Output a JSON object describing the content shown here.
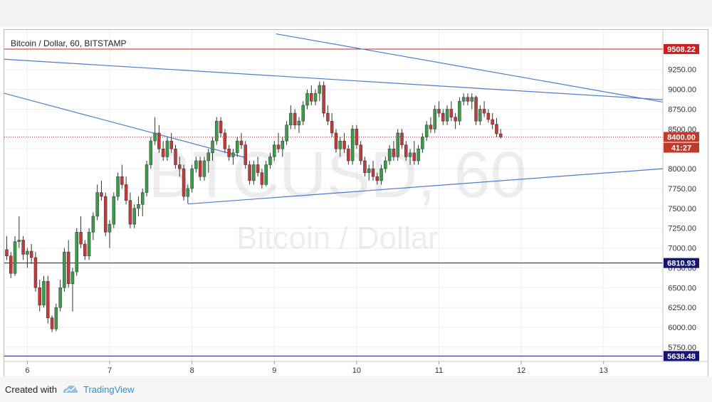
{
  "chart_data": {
    "type": "candlestick",
    "title": "Bitcoin / Dollar, 60, BITSTAMP",
    "watermark_symbol": "BTCUSD, 60",
    "watermark_name": "Bitcoin / Dollar",
    "x_tick_labels": [
      "6",
      "7",
      "8",
      "9",
      "10",
      "11",
      "12",
      "13"
    ],
    "y_tick_labels": [
      "9250.00",
      "9000.00",
      "8750.00",
      "8500.00",
      "8250.00",
      "8000.00",
      "7750.00",
      "7500.00",
      "7250.00",
      "7000.00",
      "6750.00",
      "6500.00",
      "6250.00",
      "6000.00",
      "5750.00"
    ],
    "ylim": [
      5570,
      9750
    ],
    "xlim": [
      5.72,
      13.72
    ],
    "horizontal_levels": [
      {
        "value": 9508.22,
        "label": "9508.22",
        "color": "#cc1f1f"
      },
      {
        "value": 6810.93,
        "label": "6810.93",
        "color": "#141477"
      },
      {
        "value": 5638.48,
        "label": "5638.48",
        "color": "#141477"
      }
    ],
    "last_price": {
      "value": 8400.0,
      "label": "8400.00",
      "countdown": "41:27",
      "color": "#c0392b"
    },
    "trend_lines": [
      {
        "from": [
          9.02,
          9700
        ],
        "to": [
          13.72,
          8840
        ]
      },
      {
        "from": [
          5.72,
          9380
        ],
        "to": [
          13.72,
          8870
        ]
      },
      {
        "from": [
          5.72,
          8950
        ],
        "to": [
          8.65,
          8140
        ]
      },
      {
        "from": [
          7.95,
          7555
        ],
        "to": [
          13.72,
          8000
        ]
      }
    ],
    "candles": [
      [
        5.75,
        6980,
        7150,
        6850,
        6900
      ],
      [
        5.8,
        6900,
        6950,
        6620,
        6680
      ],
      [
        5.85,
        6680,
        7150,
        6650,
        7080
      ],
      [
        5.9,
        7080,
        7400,
        7000,
        7100
      ],
      [
        5.95,
        7100,
        7150,
        6850,
        6920
      ],
      [
        6.0,
        6920,
        7000,
        6750,
        6960
      ],
      [
        6.05,
        6960,
        7050,
        6800,
        6880
      ],
      [
        6.1,
        6880,
        6950,
        6450,
        6500
      ],
      [
        6.15,
        6500,
        6600,
        6200,
        6280
      ],
      [
        6.2,
        6280,
        6650,
        6250,
        6580
      ],
      [
        6.25,
        6580,
        6650,
        6050,
        6120
      ],
      [
        6.3,
        6120,
        6150,
        5940,
        5980
      ],
      [
        6.35,
        5980,
        6300,
        5950,
        6250
      ],
      [
        6.4,
        6250,
        6600,
        6200,
        6500
      ],
      [
        6.45,
        6500,
        7000,
        6450,
        6950
      ],
      [
        6.5,
        6950,
        7100,
        6500,
        6550
      ],
      [
        6.55,
        6550,
        6750,
        6200,
        6700
      ],
      [
        6.6,
        6700,
        7250,
        6650,
        7200
      ],
      [
        6.65,
        7200,
        7400,
        7000,
        7050
      ],
      [
        6.7,
        7050,
        7100,
        6850,
        6900
      ],
      [
        6.75,
        6900,
        7250,
        6850,
        7200
      ],
      [
        6.8,
        7200,
        7450,
        7100,
        7400
      ],
      [
        6.85,
        7400,
        7800,
        7350,
        7700
      ],
      [
        6.9,
        7700,
        7850,
        7600,
        7650
      ],
      [
        6.95,
        7650,
        7700,
        7150,
        7200
      ],
      [
        7.0,
        7200,
        7350,
        7000,
        7300
      ],
      [
        7.05,
        7300,
        7700,
        7250,
        7650
      ],
      [
        7.1,
        7650,
        7950,
        7600,
        7900
      ],
      [
        7.15,
        7900,
        8050,
        7750,
        7800
      ],
      [
        7.2,
        7800,
        7900,
        7550,
        7600
      ],
      [
        7.25,
        7600,
        7700,
        7250,
        7300
      ],
      [
        7.3,
        7300,
        7550,
        7250,
        7500
      ],
      [
        7.35,
        7500,
        7650,
        7400,
        7550
      ],
      [
        7.4,
        7550,
        7750,
        7400,
        7700
      ],
      [
        7.45,
        7700,
        8100,
        7650,
        8050
      ],
      [
        7.5,
        8050,
        8400,
        8000,
        8350
      ],
      [
        7.55,
        8350,
        8650,
        8300,
        8450
      ],
      [
        7.6,
        8450,
        8550,
        8200,
        8250
      ],
      [
        7.65,
        8250,
        8350,
        8100,
        8150
      ],
      [
        7.7,
        8150,
        8400,
        8100,
        8350
      ],
      [
        7.75,
        8350,
        8450,
        8200,
        8250
      ],
      [
        7.8,
        8250,
        8300,
        8000,
        8050
      ],
      [
        7.85,
        8050,
        8150,
        7900,
        8000
      ],
      [
        7.9,
        8000,
        8050,
        7600,
        7650
      ],
      [
        7.95,
        7650,
        7800,
        7560,
        7750
      ],
      [
        8.0,
        7750,
        8050,
        7700,
        8000
      ],
      [
        8.05,
        8000,
        8150,
        7950,
        8100
      ],
      [
        8.1,
        8100,
        8150,
        7850,
        7900
      ],
      [
        8.15,
        7900,
        8150,
        7850,
        8100
      ],
      [
        8.2,
        8100,
        8250,
        7950,
        8200
      ],
      [
        8.25,
        8200,
        8400,
        8100,
        8350
      ],
      [
        8.3,
        8350,
        8650,
        8300,
        8600
      ],
      [
        8.35,
        8600,
        8650,
        8400,
        8450
      ],
      [
        8.4,
        8450,
        8500,
        8200,
        8250
      ],
      [
        8.45,
        8250,
        8300,
        8100,
        8150
      ],
      [
        8.5,
        8150,
        8250,
        8050,
        8200
      ],
      [
        8.55,
        8200,
        8400,
        8150,
        8350
      ],
      [
        8.6,
        8350,
        8450,
        8250,
        8300
      ],
      [
        8.65,
        8300,
        8350,
        8000,
        8050
      ],
      [
        8.7,
        8050,
        8100,
        7800,
        7850
      ],
      [
        8.75,
        7850,
        8100,
        7800,
        8050
      ],
      [
        8.8,
        8050,
        8150,
        7900,
        7950
      ],
      [
        8.85,
        7950,
        8000,
        7750,
        7800
      ],
      [
        8.9,
        7800,
        8100,
        7780,
        8050
      ],
      [
        8.95,
        8050,
        8200,
        8000,
        8150
      ],
      [
        9.0,
        8150,
        8350,
        8100,
        8300
      ],
      [
        9.05,
        8300,
        8450,
        8200,
        8250
      ],
      [
        9.1,
        8250,
        8400,
        8150,
        8350
      ],
      [
        9.15,
        8350,
        8600,
        8300,
        8550
      ],
      [
        9.2,
        8550,
        8800,
        8500,
        8700
      ],
      [
        9.25,
        8700,
        8750,
        8500,
        8550
      ],
      [
        9.3,
        8550,
        8650,
        8450,
        8600
      ],
      [
        9.35,
        8600,
        8850,
        8550,
        8800
      ],
      [
        9.4,
        8800,
        9000,
        8750,
        8950
      ],
      [
        9.45,
        8950,
        9050,
        8800,
        8850
      ],
      [
        9.5,
        8850,
        9000,
        8800,
        8950
      ],
      [
        9.55,
        8950,
        9100,
        8850,
        9050
      ],
      [
        9.6,
        9050,
        9100,
        8650,
        8700
      ],
      [
        9.65,
        8700,
        8800,
        8550,
        8600
      ],
      [
        9.7,
        8600,
        8700,
        8400,
        8450
      ],
      [
        9.75,
        8450,
        8500,
        8200,
        8250
      ],
      [
        9.8,
        8250,
        8400,
        8150,
        8350
      ],
      [
        9.85,
        8350,
        8450,
        8200,
        8250
      ],
      [
        9.9,
        8250,
        8300,
        8050,
        8100
      ],
      [
        9.95,
        8100,
        8550,
        8050,
        8500
      ],
      [
        10.0,
        8500,
        8550,
        8250,
        8300
      ],
      [
        10.05,
        8300,
        8350,
        8050,
        8100
      ],
      [
        10.1,
        8100,
        8150,
        7900,
        7950
      ],
      [
        10.15,
        7950,
        8050,
        7850,
        8000
      ],
      [
        10.2,
        8000,
        8100,
        7850,
        7900
      ],
      [
        10.25,
        7900,
        7950,
        7800,
        7850
      ],
      [
        10.3,
        7850,
        8050,
        7800,
        8000
      ],
      [
        10.35,
        8000,
        8150,
        7950,
        8100
      ],
      [
        10.4,
        8100,
        8300,
        8050,
        8250
      ],
      [
        10.45,
        8250,
        8350,
        8100,
        8150
      ],
      [
        10.5,
        8150,
        8500,
        8100,
        8450
      ],
      [
        10.55,
        8450,
        8500,
        8250,
        8300
      ],
      [
        10.6,
        8300,
        8350,
        8100,
        8150
      ],
      [
        10.65,
        8150,
        8250,
        8050,
        8200
      ],
      [
        10.7,
        8200,
        8350,
        8050,
        8100
      ],
      [
        10.75,
        8100,
        8300,
        8050,
        8250
      ],
      [
        10.8,
        8250,
        8450,
        8200,
        8400
      ],
      [
        10.85,
        8400,
        8600,
        8350,
        8550
      ],
      [
        10.9,
        8550,
        8650,
        8450,
        8500
      ],
      [
        10.95,
        8500,
        8800,
        8450,
        8750
      ],
      [
        11.0,
        8750,
        8850,
        8650,
        8700
      ],
      [
        11.05,
        8700,
        8750,
        8550,
        8600
      ],
      [
        11.1,
        8600,
        8800,
        8550,
        8750
      ],
      [
        11.15,
        8750,
        8850,
        8600,
        8650
      ],
      [
        11.2,
        8650,
        8700,
        8500,
        8600
      ],
      [
        11.25,
        8600,
        8900,
        8550,
        8850
      ],
      [
        11.3,
        8850,
        8950,
        8800,
        8900
      ],
      [
        11.35,
        8900,
        8950,
        8800,
        8850
      ],
      [
        11.4,
        8850,
        8950,
        8750,
        8900
      ],
      [
        11.45,
        8900,
        8920,
        8550,
        8600
      ],
      [
        11.5,
        8600,
        8800,
        8550,
        8750
      ],
      [
        11.55,
        8750,
        8850,
        8650,
        8700
      ],
      [
        11.6,
        8700,
        8750,
        8580,
        8620
      ],
      [
        11.65,
        8620,
        8700,
        8500,
        8560
      ],
      [
        11.7,
        8560,
        8640,
        8400,
        8440
      ],
      [
        11.75,
        8440,
        8500,
        8380,
        8400
      ]
    ]
  },
  "footer": {
    "created_with": "Created with",
    "brand": "TradingView"
  },
  "colors": {
    "up": "#3c9b4a",
    "down": "#c23a3a",
    "trend_line": "#4a7ccf",
    "grid": "#eeeeee"
  }
}
